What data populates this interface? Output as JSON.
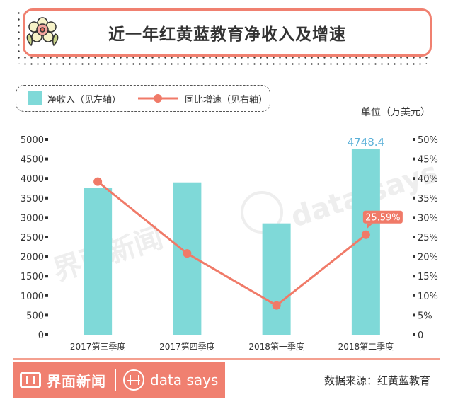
{
  "title": "近一年红黄蓝教育净收入及增速",
  "legend": {
    "bar_label": "净收入（见左轴）",
    "line_label": "同比增速（见右轴）"
  },
  "unit": "单位（万美元）",
  "footer": {
    "brand_cn": "界面新闻",
    "brand_en": "data says",
    "source": "数据来源：红黄蓝教育"
  },
  "watermark": {
    "cn": "界面新闻",
    "en": "data says"
  },
  "colors": {
    "bar": "#7fd9d8",
    "line": "#f07a68",
    "accent": "#f08070",
    "bar_label": "#5ab0d8"
  },
  "chart_data": {
    "type": "bar",
    "categories": [
      "2017第三季度",
      "2017第四季度",
      "2018第一季度",
      "2018第二季度"
    ],
    "series": [
      {
        "name": "净收入（见左轴）",
        "type": "bar",
        "axis": "left",
        "values": [
          3760,
          3900,
          2850,
          4748.4
        ]
      },
      {
        "name": "同比增速（见右轴）",
        "type": "line",
        "axis": "right",
        "values": [
          39.2,
          20.8,
          7.5,
          25.59
        ]
      }
    ],
    "data_labels": {
      "bar_last": "4748.4",
      "line_last": "25.59%"
    },
    "y_left": {
      "range": [
        0,
        5000
      ],
      "ticks": [
        "0",
        "500",
        "1000",
        "1500",
        "2000",
        "2500",
        "3000",
        "3500",
        "4000",
        "4500",
        "5000"
      ]
    },
    "y_right": {
      "range": [
        0,
        50
      ],
      "ticks": [
        "0",
        "5%",
        "10%",
        "15%",
        "20%",
        "25%",
        "30%",
        "35%",
        "40%",
        "45%",
        "50%"
      ]
    },
    "grid": false,
    "legend_position": "top-left"
  }
}
